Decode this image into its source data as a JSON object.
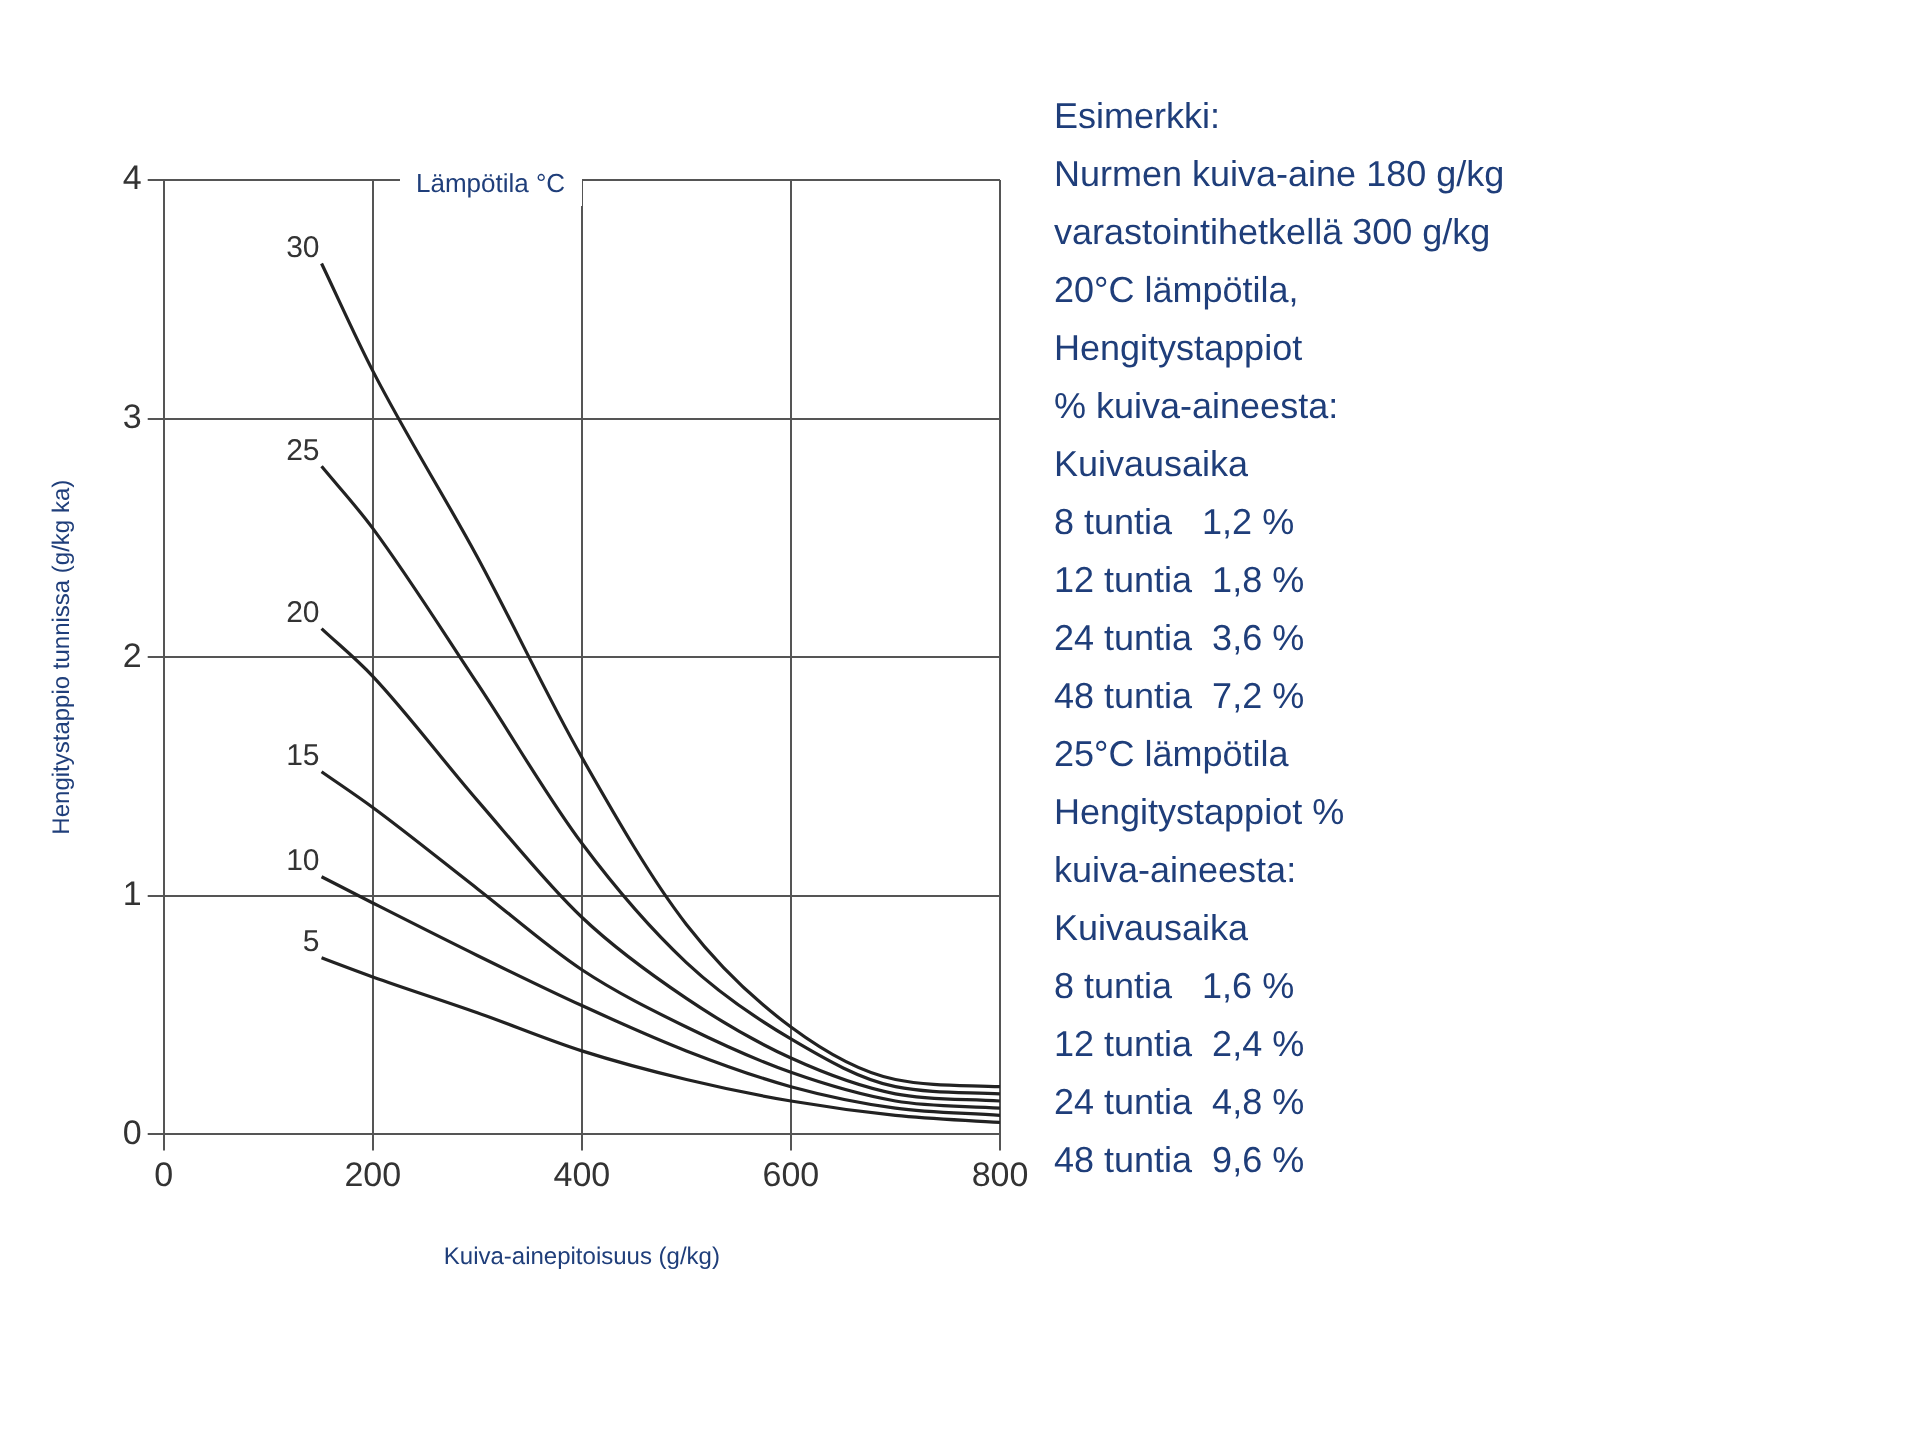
{
  "chart_data": {
    "type": "line",
    "xlabel": "Kuiva-ainepitoisuus (g/kg)",
    "ylabel": "Hengitystappio tunnissa (g/kg ka)",
    "legend_title": "Lämpötila °C",
    "x": [
      151,
      200,
      300,
      400,
      500,
      600,
      700,
      800
    ],
    "series": [
      {
        "name": "30",
        "color": "#222222",
        "values": [
          3.65,
          3.2,
          2.42,
          1.58,
          0.88,
          0.45,
          0.23,
          0.2
        ]
      },
      {
        "name": "25",
        "color": "#222222",
        "values": [
          2.8,
          2.54,
          1.89,
          1.22,
          0.72,
          0.4,
          0.2,
          0.17
        ]
      },
      {
        "name": "20",
        "color": "#222222",
        "values": [
          2.12,
          1.92,
          1.4,
          0.91,
          0.57,
          0.32,
          0.17,
          0.14
        ]
      },
      {
        "name": "15",
        "color": "#222222",
        "values": [
          1.52,
          1.37,
          1.03,
          0.69,
          0.45,
          0.26,
          0.14,
          0.11
        ]
      },
      {
        "name": "10",
        "color": "#222222",
        "values": [
          1.08,
          0.97,
          0.75,
          0.54,
          0.35,
          0.2,
          0.11,
          0.08
        ]
      },
      {
        "name": "5",
        "color": "#222222",
        "values": [
          0.74,
          0.66,
          0.51,
          0.35,
          0.23,
          0.14,
          0.08,
          0.05
        ]
      }
    ],
    "xlim": [
      0,
      800
    ],
    "xticks": [
      0,
      200,
      400,
      600,
      800
    ],
    "ylim": [
      0,
      4
    ],
    "yticks": [
      0,
      1,
      2,
      3,
      4
    ],
    "grid": true,
    "marker": "none",
    "line_style": "solid",
    "annotations": [
      "Esimerkki:",
      "Nurmen kuiva-aine 180 g/kg",
      "varastointihetkellä 300 g/kg",
      "20°C lämpötila,",
      "Hengitystappiot",
      "% kuiva-aineesta:",
      "Kuivausaika",
      "8 tuntia   1,2 %",
      "12 tuntia  1,8 %",
      "24 tuntia  3,6 %",
      "48 tuntia  7,2 %",
      "25°C lämpötila",
      "Hengitystappiot %",
      "kuiva-aineesta:",
      "Kuivausaika",
      "8 tuntia   1,6 %",
      "12 tuntia  2,4 %",
      "24 tuntia  4,8 %",
      "48 tuntia  9,6 %"
    ]
  }
}
